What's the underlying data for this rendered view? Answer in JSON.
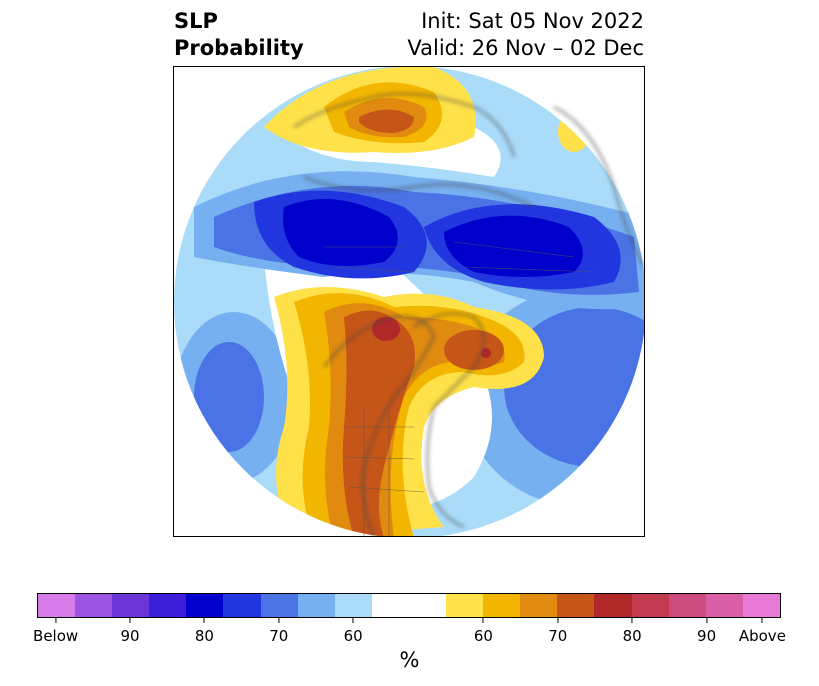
{
  "title": {
    "left_line1": "SLP",
    "left_line2": "Probability",
    "right_line1": "Init: Sat 05 Nov 2022",
    "right_line2": "Valid: 26 Nov – 02 Dec"
  },
  "map": {
    "projection": "polar stereographic",
    "region": "Northern Hemisphere"
  },
  "colorbar": {
    "unit_label": "%",
    "segments": [
      {
        "color": "#d67be8"
      },
      {
        "color": "#9a56e2"
      },
      {
        "color": "#6a36d8"
      },
      {
        "color": "#3c1ed8"
      },
      {
        "color": "#0000cd"
      },
      {
        "color": "#2236e0"
      },
      {
        "color": "#4a74e6"
      },
      {
        "color": "#76b0f0"
      },
      {
        "color": "#aadcfa"
      },
      {
        "color": "#ffffff",
        "wide": true
      },
      {
        "color": "#ffe14a"
      },
      {
        "color": "#f3b600"
      },
      {
        "color": "#e08a10"
      },
      {
        "color": "#c65518"
      },
      {
        "color": "#b12828"
      },
      {
        "color": "#c13a50"
      },
      {
        "color": "#cc4c80"
      },
      {
        "color": "#d85fa8"
      },
      {
        "color": "#e67ad6"
      }
    ],
    "tick_labels": [
      "Below",
      "90",
      "80",
      "70",
      "60",
      "60",
      "70",
      "80",
      "90",
      "Above"
    ]
  }
}
